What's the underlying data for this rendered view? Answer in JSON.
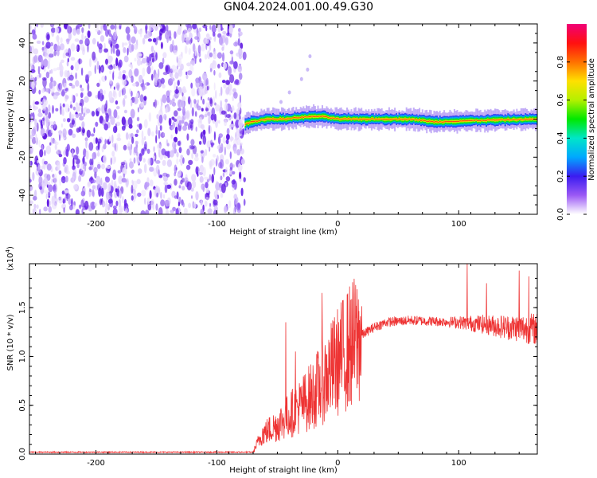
{
  "figure": {
    "title": "GN04.2024.001.00.49.G30"
  },
  "chart_data": [
    {
      "type": "heatmap",
      "title": "GN04.2024.001.00.49.G30",
      "xlabel": "Height of straight line (km)",
      "ylabel": "Frequency (Hz)",
      "xlim": [
        -255,
        165
      ],
      "ylim": [
        -50,
        50
      ],
      "x_ticks": [
        -200,
        -100,
        0,
        100
      ],
      "x_tick_labels": [
        "-200",
        "-100",
        "0",
        "100"
      ],
      "y_ticks": [
        -40,
        -20,
        0,
        20,
        40
      ],
      "y_tick_labels": [
        "-40",
        "-20",
        "0",
        "20",
        "40"
      ],
      "colorbar": {
        "label": "Normalized spectral amplitude",
        "range": [
          0,
          1
        ],
        "ticks": [
          0.0,
          0.2,
          0.4,
          0.6,
          0.8
        ],
        "tick_labels": [
          "0.0",
          "0.2",
          "0.4",
          "0.6",
          "0.8"
        ],
        "colors": [
          "#ffffff",
          "#9b59f5",
          "#3a1cf0",
          "#00a8ff",
          "#00e6c8",
          "#00e800",
          "#b4f000",
          "#ffe000",
          "#ff7000",
          "#ff1010",
          "#f00078"
        ]
      },
      "regions": [
        {
          "name": "noise",
          "x_range": [
            -255,
            -77
          ],
          "amplitude_range": [
            0.0,
            0.15
          ]
        },
        {
          "name": "signal",
          "x_range": [
            -77,
            165
          ],
          "center_frequency": 0,
          "half_width": 2.5
        }
      ],
      "signal_center_frequency": [
        {
          "x": -77,
          "y": -2.5
        },
        {
          "x": -72,
          "y": -1.5
        },
        {
          "x": -60,
          "y": 0
        },
        {
          "x": -45,
          "y": 0
        },
        {
          "x": -30,
          "y": 1
        },
        {
          "x": -15,
          "y": 1.5
        },
        {
          "x": 0,
          "y": 0
        },
        {
          "x": 30,
          "y": 0
        },
        {
          "x": 60,
          "y": 0
        },
        {
          "x": 80,
          "y": -1.5
        },
        {
          "x": 100,
          "y": -1
        },
        {
          "x": 130,
          "y": -0.5
        },
        {
          "x": 165,
          "y": 0
        }
      ],
      "faint_streak": [
        {
          "x": -47,
          "y": 9
        },
        {
          "x": -40,
          "y": 14
        },
        {
          "x": -30,
          "y": 21
        },
        {
          "x": -25,
          "y": 26
        },
        {
          "x": -23,
          "y": 33
        }
      ]
    },
    {
      "type": "line",
      "xlabel": "Height of straight line (km)",
      "ylabel": "SNR (10 * v/v)",
      "y_multiplier_label": "(x10",
      "y_multiplier_exponent": "4",
      "y_multiplier_close": ")",
      "xlim": [
        -255,
        165
      ],
      "ylim": [
        0,
        1.95
      ],
      "x_ticks": [
        -200,
        -100,
        0,
        100
      ],
      "x_tick_labels": [
        "-200",
        "-100",
        "0",
        "100"
      ],
      "y_ticks": [
        0,
        0.5,
        1.0,
        1.5
      ],
      "y_tick_labels": [
        "0.0",
        "0.5",
        "1.0",
        "1.5"
      ],
      "grid": false,
      "line_color": "#ee3333",
      "series": [
        {
          "trend": [
            {
              "x": -255,
              "y": 0.02
            },
            {
              "x": -70,
              "y": 0.02
            },
            {
              "x": -63,
              "y": 0.2
            },
            {
              "x": -50,
              "y": 0.3
            },
            {
              "x": -40,
              "y": 0.4
            },
            {
              "x": -30,
              "y": 0.5
            },
            {
              "x": -20,
              "y": 0.62
            },
            {
              "x": -10,
              "y": 0.78
            },
            {
              "x": 0,
              "y": 0.95
            },
            {
              "x": 10,
              "y": 1.1
            },
            {
              "x": 20,
              "y": 1.22
            },
            {
              "x": 30,
              "y": 1.3
            },
            {
              "x": 40,
              "y": 1.35
            },
            {
              "x": 60,
              "y": 1.37
            },
            {
              "x": 80,
              "y": 1.36
            },
            {
              "x": 100,
              "y": 1.35
            },
            {
              "x": 120,
              "y": 1.33
            },
            {
              "x": 140,
              "y": 1.3
            },
            {
              "x": 165,
              "y": 1.28
            }
          ],
          "spikes": [
            {
              "x": -43,
              "y": 1.35
            },
            {
              "x": -35,
              "y": 1.05
            },
            {
              "x": -13,
              "y": 1.65
            },
            {
              "x": 107,
              "y": 1.95
            },
            {
              "x": 123,
              "y": 1.75
            },
            {
              "x": 150,
              "y": 1.88
            },
            {
              "x": 158,
              "y": 1.82
            }
          ]
        }
      ]
    }
  ]
}
